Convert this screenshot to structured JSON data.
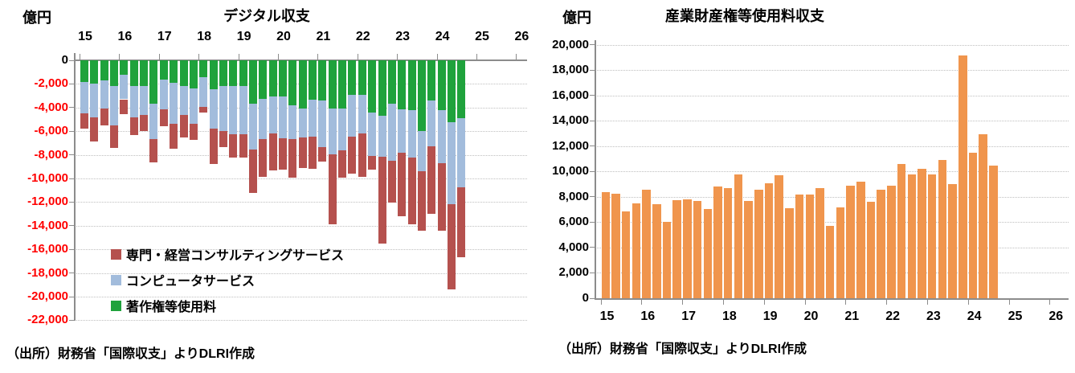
{
  "page": {
    "background": "#ffffff"
  },
  "colors": {
    "consulting_red": "#b5514e",
    "computer_blue": "#a2bcdc",
    "copyright_green": "#1fa23c",
    "orange_bar": "#f0954d",
    "negative_axis_label": "#ff0000",
    "axis_gray": "#8c8c8c",
    "grid_gray": "#bfbfbf",
    "text_black": "#000000"
  },
  "chart_data": [
    {
      "type": "bar",
      "subtype": "stacked-negative",
      "title": "デジタル収支",
      "unit_label": "億円",
      "source": "（出所）財務省「国際収支」よりDLRI作成",
      "xlabel": "",
      "ylabel": "億円",
      "ylim": [
        -22000,
        0
      ],
      "grid": true,
      "legend_position": "inside-lower-left",
      "y_tick_labels": [
        "0",
        "-2,000",
        "-4,000",
        "-6,000",
        "-8,000",
        "-10,000",
        "-12,000",
        "-14,000",
        "-16,000",
        "-18,000",
        "-20,000",
        "-22,000"
      ],
      "y_tick_values": [
        0,
        -2000,
        -4000,
        -6000,
        -8000,
        -10000,
        -12000,
        -14000,
        -16000,
        -18000,
        -20000,
        -22000
      ],
      "x_year_labels": [
        "15",
        "16",
        "17",
        "18",
        "19",
        "20",
        "21",
        "22",
        "23",
        "24",
        "25",
        "26"
      ],
      "categories": [
        "2015Q1",
        "2015Q2",
        "2015Q3",
        "2015Q4",
        "2016Q1",
        "2016Q2",
        "2016Q3",
        "2016Q4",
        "2017Q1",
        "2017Q2",
        "2017Q3",
        "2017Q4",
        "2018Q1",
        "2018Q2",
        "2018Q3",
        "2018Q4",
        "2019Q1",
        "2019Q2",
        "2019Q3",
        "2019Q4",
        "2020Q1",
        "2020Q2",
        "2020Q3",
        "2020Q4",
        "2021Q1",
        "2021Q2",
        "2021Q3",
        "2021Q4",
        "2022Q1",
        "2022Q2",
        "2022Q3",
        "2022Q4",
        "2023Q1",
        "2023Q2",
        "2023Q3",
        "2023Q4",
        "2024Q1",
        "2024Q2",
        "2024Q3"
      ],
      "values_note": "quarterly deficits in 億円, plotted as negative stacked bars; magnitudes listed",
      "series": [
        {
          "name": "専門・経営コンサルティングサービス",
          "color_key": "consulting_red",
          "values": [
            1300,
            2050,
            1450,
            1900,
            1250,
            1500,
            1350,
            2000,
            1450,
            2100,
            1900,
            1400,
            450,
            3050,
            1350,
            1950,
            2000,
            3650,
            3200,
            3100,
            2650,
            3200,
            2550,
            2750,
            1250,
            5950,
            2300,
            3150,
            3650,
            1150,
            7350,
            3550,
            5400,
            5650,
            5050,
            5700,
            5700,
            7200,
            5950
          ]
        },
        {
          "name": "コンピュータサービス",
          "color_key": "computer_blue",
          "values": [
            2650,
            2900,
            2350,
            3300,
            2100,
            2700,
            2500,
            2950,
            2550,
            3450,
            2400,
            3000,
            2500,
            3300,
            3850,
            4100,
            4050,
            3850,
            3400,
            3150,
            3550,
            2900,
            2500,
            3150,
            3950,
            3900,
            3500,
            3500,
            3300,
            3700,
            3450,
            4800,
            3650,
            4050,
            3400,
            3900,
            4450,
            6950,
            5850
          ]
        },
        {
          "name": "著作権等使用料",
          "color_key": "copyright_green",
          "values": [
            1850,
            1950,
            1700,
            2200,
            1200,
            2150,
            2150,
            3700,
            1600,
            1900,
            2200,
            2350,
            1450,
            2450,
            2150,
            2150,
            2200,
            3700,
            3250,
            3050,
            3050,
            3800,
            4050,
            3300,
            3400,
            4050,
            4100,
            2950,
            2900,
            4400,
            4700,
            3700,
            4150,
            4200,
            6000,
            3400,
            4250,
            5250,
            4900
          ]
        }
      ],
      "stack_order_from_axis": [
        2,
        1,
        0
      ]
    },
    {
      "type": "bar",
      "title": "産業財産権等使用料収支",
      "unit_label": "億円",
      "source": "（出所）財務省「国際収支」よりDLRI作成",
      "xlabel": "",
      "ylabel": "億円",
      "ylim": [
        0,
        20000
      ],
      "grid": true,
      "y_tick_labels": [
        "0",
        "2,000",
        "4,000",
        "6,000",
        "8,000",
        "10,000",
        "12,000",
        "14,000",
        "16,000",
        "18,000",
        "20,000"
      ],
      "y_tick_values": [
        0,
        2000,
        4000,
        6000,
        8000,
        10000,
        12000,
        14000,
        16000,
        18000,
        20000
      ],
      "x_year_labels": [
        "15",
        "16",
        "17",
        "18",
        "19",
        "20",
        "21",
        "22",
        "23",
        "24",
        "25",
        "26"
      ],
      "categories": [
        "2015Q1",
        "2015Q2",
        "2015Q3",
        "2015Q4",
        "2016Q1",
        "2016Q2",
        "2016Q3",
        "2016Q4",
        "2017Q1",
        "2017Q2",
        "2017Q3",
        "2017Q4",
        "2018Q1",
        "2018Q2",
        "2018Q3",
        "2018Q4",
        "2019Q1",
        "2019Q2",
        "2019Q3",
        "2019Q4",
        "2020Q1",
        "2020Q2",
        "2020Q3",
        "2020Q4",
        "2021Q1",
        "2021Q2",
        "2021Q3",
        "2021Q4",
        "2022Q1",
        "2022Q2",
        "2022Q3",
        "2022Q4",
        "2023Q1",
        "2023Q2",
        "2023Q3",
        "2023Q4",
        "2024Q1",
        "2024Q2",
        "2024Q3"
      ],
      "series": [
        {
          "name": "産業財産権等使用料収支",
          "color_key": "orange_bar",
          "values": [
            8350,
            8250,
            6840,
            7500,
            8560,
            7420,
            6030,
            7730,
            7830,
            7690,
            7070,
            8810,
            8700,
            9800,
            7670,
            8560,
            9060,
            9680,
            7130,
            8170,
            8170,
            8700,
            5740,
            7190,
            8910,
            9220,
            7610,
            8560,
            8850,
            10620,
            9750,
            10190,
            9790,
            10930,
            9010,
            19150,
            11490,
            12930,
            10450
          ]
        }
      ]
    }
  ]
}
